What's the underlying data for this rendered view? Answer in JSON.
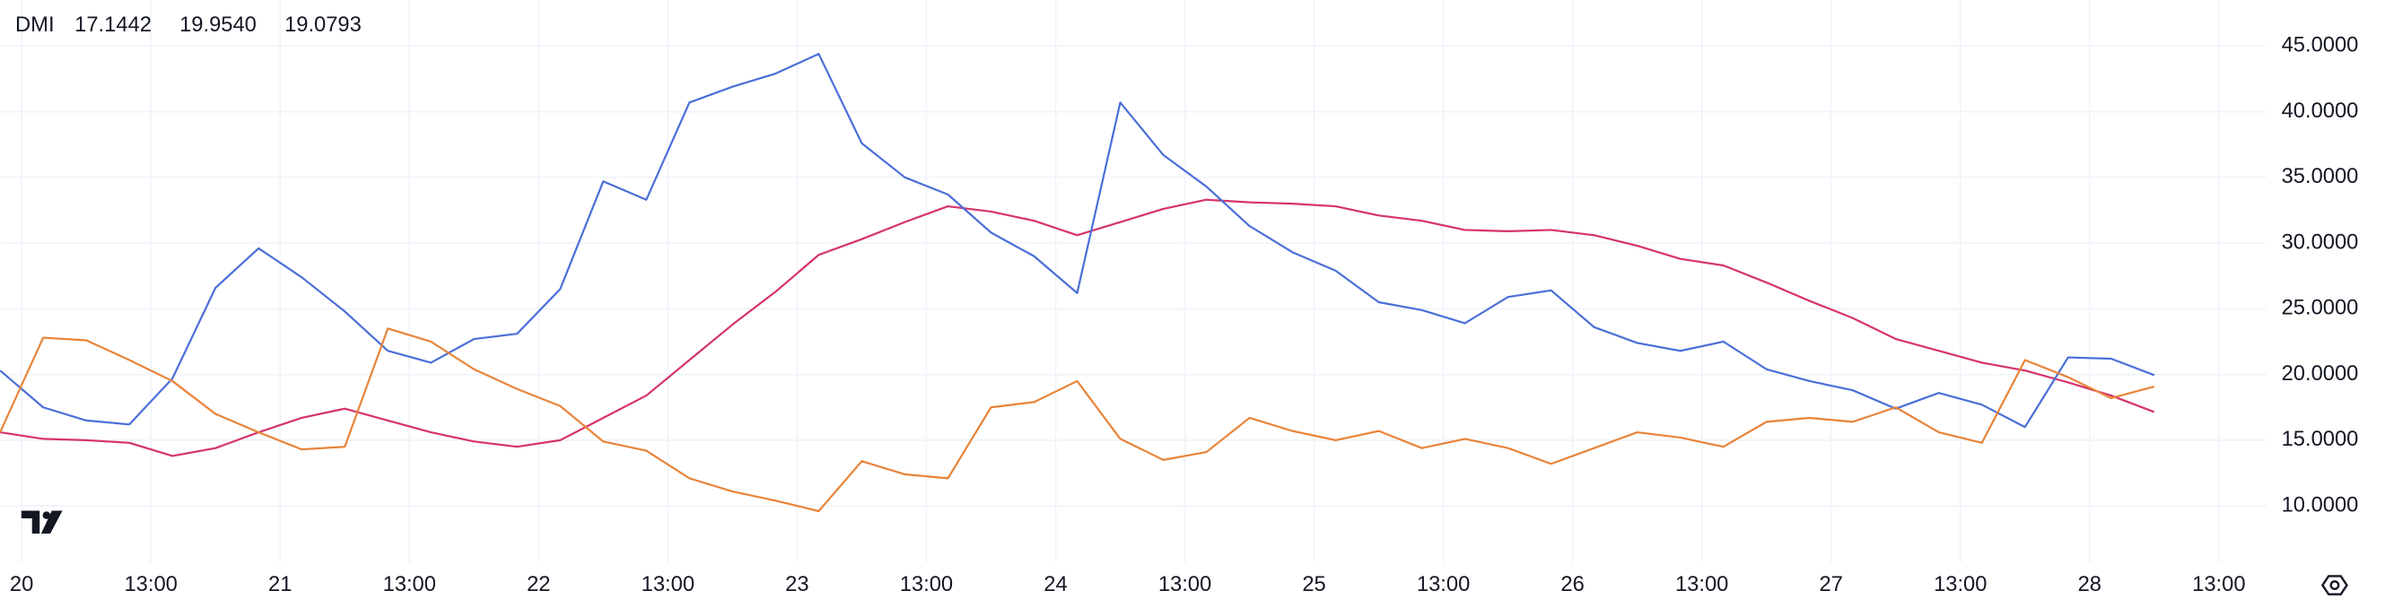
{
  "chart_data": {
    "type": "line",
    "indicator": "DMI",
    "series": [
      {
        "color": "#d6336c",
        "last_value_label": "17.1442",
        "values": [
          15.6,
          15.1,
          15.0,
          14.8,
          13.8,
          14.4,
          15.6,
          16.7,
          17.4,
          16.5,
          15.6,
          14.9,
          14.5,
          15.0,
          16.7,
          18.4,
          21.1,
          23.8,
          26.3,
          29.1,
          30.3,
          31.6,
          32.8,
          32.4,
          31.7,
          30.6,
          31.6,
          32.6,
          33.3,
          33.1,
          33.0,
          32.8,
          32.1,
          31.7,
          31.0,
          30.9,
          31.0,
          30.6,
          29.8,
          28.8,
          28.3,
          27.0,
          25.6,
          24.3,
          22.7,
          21.8,
          20.9,
          20.3,
          19.4,
          18.4,
          17.1442
        ]
      },
      {
        "color": "#4a6fd8",
        "last_value_label": "19.9540",
        "values": [
          20.3,
          17.5,
          16.5,
          16.2,
          19.7,
          26.6,
          29.6,
          27.4,
          24.8,
          21.8,
          20.9,
          22.7,
          23.1,
          26.5,
          34.7,
          33.3,
          40.7,
          41.9,
          42.9,
          44.4,
          37.6,
          35.0,
          33.7,
          30.8,
          29.0,
          26.2,
          40.7,
          36.7,
          34.3,
          31.3,
          29.3,
          27.9,
          25.5,
          24.9,
          23.9,
          25.9,
          26.4,
          23.6,
          22.4,
          21.8,
          22.5,
          20.4,
          19.5,
          18.8,
          17.4,
          18.6,
          17.7,
          16.0,
          21.3,
          21.2,
          19.954
        ]
      },
      {
        "color": "#e8843a",
        "last_value_label": "19.0793",
        "values": [
          15.6,
          22.8,
          22.6,
          21.1,
          19.5,
          17.0,
          15.6,
          14.3,
          14.5,
          23.5,
          22.5,
          20.4,
          18.9,
          17.6,
          14.9,
          14.2,
          12.1,
          11.1,
          10.4,
          9.6,
          13.4,
          12.4,
          12.1,
          17.5,
          17.9,
          19.5,
          15.1,
          13.5,
          14.1,
          16.7,
          15.7,
          15.0,
          15.7,
          14.4,
          15.1,
          14.4,
          13.2,
          14.4,
          15.6,
          15.2,
          14.5,
          16.4,
          16.7,
          16.4,
          17.5,
          15.6,
          14.8,
          21.1,
          19.8,
          18.2,
          19.0793
        ]
      }
    ],
    "xlim": [
      0,
      52.6
    ],
    "xticks": [
      {
        "value": 0.5,
        "label": "20"
      },
      {
        "value": 3.5,
        "label": "13:00"
      },
      {
        "value": 6.5,
        "label": "21"
      },
      {
        "value": 9.5,
        "label": "13:00"
      },
      {
        "value": 12.5,
        "label": "22"
      },
      {
        "value": 15.5,
        "label": "13:00"
      },
      {
        "value": 18.5,
        "label": "23"
      },
      {
        "value": 21.5,
        "label": "13:00"
      },
      {
        "value": 24.5,
        "label": "24"
      },
      {
        "value": 27.5,
        "label": "13:00"
      },
      {
        "value": 30.5,
        "label": "25"
      },
      {
        "value": 33.5,
        "label": "13:00"
      },
      {
        "value": 36.5,
        "label": "26"
      },
      {
        "value": 39.5,
        "label": "13:00"
      },
      {
        "value": 42.5,
        "label": "27"
      },
      {
        "value": 45.5,
        "label": "13:00"
      },
      {
        "value": 48.5,
        "label": "28"
      },
      {
        "value": 51.5,
        "label": "13:00"
      }
    ],
    "ylim": [
      5.7,
      48.5
    ],
    "yticks": [
      {
        "value": 10,
        "label": "10.0000"
      },
      {
        "value": 15,
        "label": "15.0000"
      },
      {
        "value": 20,
        "label": "20.0000"
      },
      {
        "value": 25,
        "label": "25.0000"
      },
      {
        "value": 30,
        "label": "30.0000"
      },
      {
        "value": 35,
        "label": "35.0000"
      },
      {
        "value": 40,
        "label": "40.0000"
      },
      {
        "value": 45,
        "label": "45.0000"
      }
    ],
    "grid": true
  }
}
